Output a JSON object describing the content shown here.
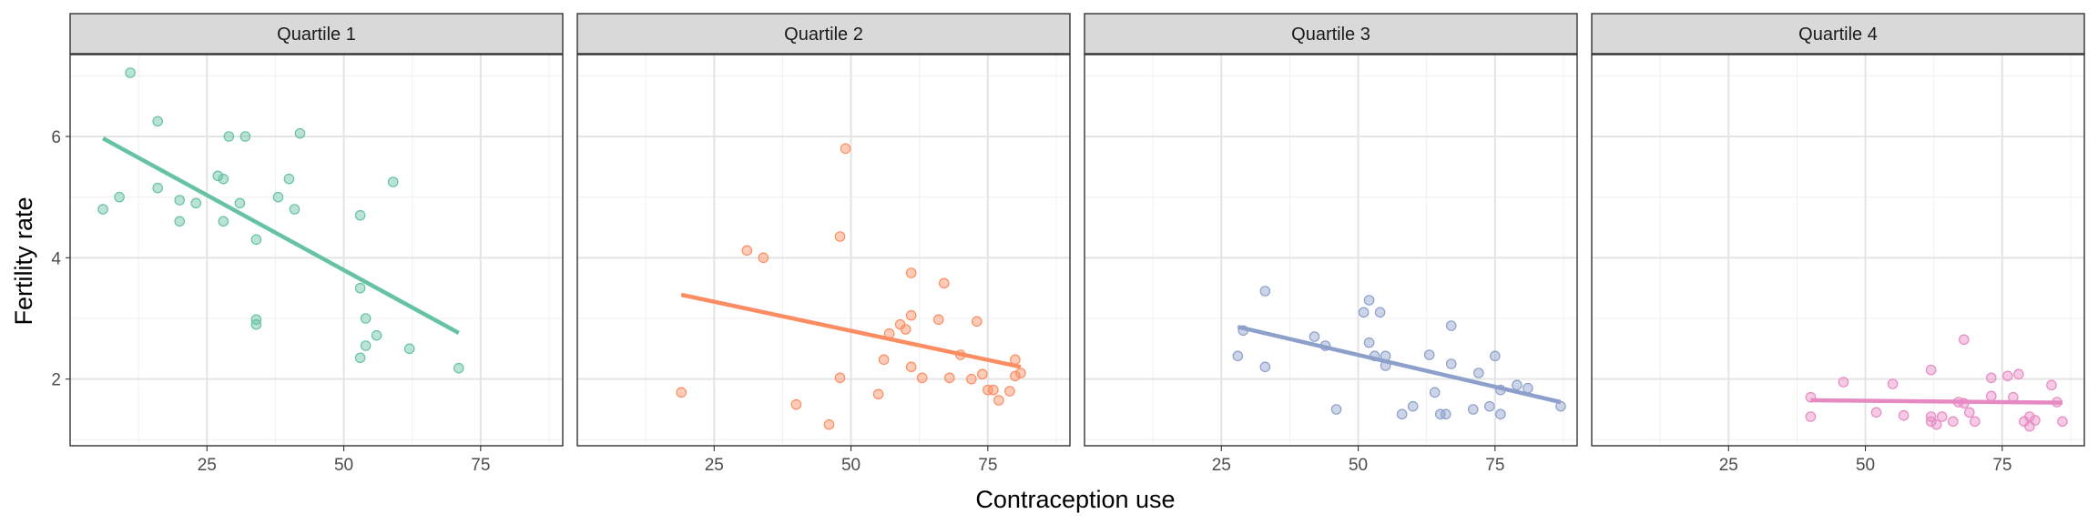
{
  "chart_data": {
    "type": "scatter",
    "xlabel": "Contraception use",
    "ylabel": "Fertility rate",
    "xlim": [
      0,
      90
    ],
    "ylim": [
      0.9,
      7.35
    ],
    "x_ticks": [
      25,
      50,
      75
    ],
    "x_tick_labels": [
      "25",
      "50",
      "75"
    ],
    "y_ticks": [
      2,
      4,
      6
    ],
    "y_tick_labels": [
      "2",
      "4",
      "6"
    ],
    "grid": true,
    "facets": [
      {
        "label": "Quartile 1",
        "color": "#66C2A5",
        "points": [
          [
            6,
            4.8
          ],
          [
            9,
            5.0
          ],
          [
            11,
            7.05
          ],
          [
            16,
            6.25
          ],
          [
            16,
            5.15
          ],
          [
            20,
            4.95
          ],
          [
            20,
            4.6
          ],
          [
            23,
            4.9
          ],
          [
            27,
            5.35
          ],
          [
            28,
            5.3
          ],
          [
            28,
            4.6
          ],
          [
            29,
            6.0
          ],
          [
            31,
            4.9
          ],
          [
            32,
            6.0
          ],
          [
            34,
            4.3
          ],
          [
            34,
            2.98
          ],
          [
            34,
            2.9
          ],
          [
            38,
            5.0
          ],
          [
            40,
            5.3
          ],
          [
            41,
            4.8
          ],
          [
            42,
            6.05
          ],
          [
            53,
            4.7
          ],
          [
            53,
            3.5
          ],
          [
            53,
            2.35
          ],
          [
            54,
            3.0
          ],
          [
            54,
            2.55
          ],
          [
            56,
            2.72
          ],
          [
            59,
            5.25
          ],
          [
            62,
            2.5
          ],
          [
            71,
            2.18
          ]
        ],
        "fit": [
          [
            6,
            5.97
          ],
          [
            71,
            2.76
          ]
        ]
      },
      {
        "label": "Quartile 2",
        "color": "#FC8D62",
        "points": [
          [
            19,
            1.78
          ],
          [
            31,
            4.12
          ],
          [
            34,
            4.0
          ],
          [
            40,
            1.58
          ],
          [
            46,
            1.25
          ],
          [
            48,
            4.35
          ],
          [
            48,
            2.02
          ],
          [
            49,
            5.8
          ],
          [
            55,
            1.75
          ],
          [
            56,
            2.32
          ],
          [
            57,
            2.75
          ],
          [
            59,
            2.9
          ],
          [
            60,
            2.82
          ],
          [
            61,
            3.75
          ],
          [
            61,
            3.05
          ],
          [
            61,
            2.2
          ],
          [
            63,
            2.02
          ],
          [
            66,
            2.98
          ],
          [
            67,
            3.58
          ],
          [
            68,
            2.02
          ],
          [
            70,
            2.4
          ],
          [
            72,
            2.0
          ],
          [
            73,
            2.95
          ],
          [
            74,
            2.08
          ],
          [
            75,
            1.82
          ],
          [
            76,
            1.82
          ],
          [
            77,
            1.65
          ],
          [
            79,
            1.8
          ],
          [
            80,
            2.32
          ],
          [
            80,
            2.05
          ],
          [
            81,
            2.1
          ]
        ],
        "fit": [
          [
            19,
            3.39
          ],
          [
            81,
            2.2
          ]
        ]
      },
      {
        "label": "Quartile 3",
        "color": "#8DA0CB",
        "points": [
          [
            28,
            2.38
          ],
          [
            29,
            2.8
          ],
          [
            33,
            3.45
          ],
          [
            33,
            2.2
          ],
          [
            42,
            2.7
          ],
          [
            44,
            2.55
          ],
          [
            46,
            1.5
          ],
          [
            51,
            3.1
          ],
          [
            52,
            3.3
          ],
          [
            52,
            2.6
          ],
          [
            53,
            2.38
          ],
          [
            54,
            3.1
          ],
          [
            55,
            2.38
          ],
          [
            55,
            2.22
          ],
          [
            58,
            1.42
          ],
          [
            60,
            1.55
          ],
          [
            63,
            2.4
          ],
          [
            64,
            1.78
          ],
          [
            65,
            1.42
          ],
          [
            66,
            1.42
          ],
          [
            67,
            2.88
          ],
          [
            67,
            2.25
          ],
          [
            71,
            1.5
          ],
          [
            72,
            2.1
          ],
          [
            74,
            1.55
          ],
          [
            75,
            2.38
          ],
          [
            76,
            1.42
          ],
          [
            76,
            1.82
          ],
          [
            79,
            1.9
          ],
          [
            81,
            1.85
          ],
          [
            87,
            1.55
          ]
        ],
        "fit": [
          [
            28,
            2.86
          ],
          [
            87,
            1.62
          ]
        ]
      },
      {
        "label": "Quartile 4",
        "color": "#E78AC3",
        "points": [
          [
            40,
            1.7
          ],
          [
            40,
            1.38
          ],
          [
            46,
            1.95
          ],
          [
            52,
            1.45
          ],
          [
            55,
            1.92
          ],
          [
            57,
            1.4
          ],
          [
            62,
            2.15
          ],
          [
            62,
            1.38
          ],
          [
            62,
            1.3
          ],
          [
            63,
            1.25
          ],
          [
            64,
            1.38
          ],
          [
            66,
            1.3
          ],
          [
            67,
            1.62
          ],
          [
            68,
            2.65
          ],
          [
            68,
            1.6
          ],
          [
            69,
            1.45
          ],
          [
            70,
            1.3
          ],
          [
            73,
            2.02
          ],
          [
            73,
            1.72
          ],
          [
            76,
            2.05
          ],
          [
            77,
            1.7
          ],
          [
            78,
            2.08
          ],
          [
            79,
            1.3
          ],
          [
            80,
            1.38
          ],
          [
            80,
            1.22
          ],
          [
            81,
            1.32
          ],
          [
            84,
            1.9
          ],
          [
            85,
            1.62
          ],
          [
            86,
            1.3
          ]
        ],
        "fit": [
          [
            40,
            1.65
          ],
          [
            86,
            1.61
          ]
        ]
      }
    ]
  }
}
